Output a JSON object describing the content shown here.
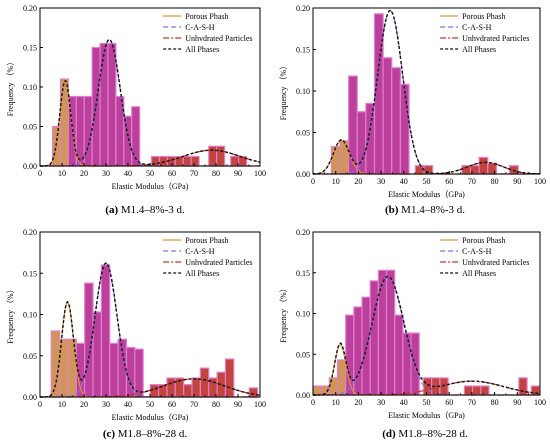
{
  "colors": {
    "porous": "#c8843a",
    "csh": "#b01f8a",
    "unhydrated": "#b8231a",
    "all": "#111111",
    "porous_line": "#e0953a",
    "csh_line": "#8c6ee0",
    "unhydrated_line": "#c0362a"
  },
  "chart_data": [
    {
      "type": "bar",
      "caption_prefix": "(a)",
      "caption_text": "M1.4–8%-3 d.",
      "xlabel": "Elastic Modulus（GPa)",
      "ylabel": "Frequency （%）",
      "xlim": [
        0,
        100
      ],
      "ylim": [
        0,
        0.2
      ],
      "xticks": [
        "0",
        "10",
        "20",
        "30",
        "40",
        "50",
        "60",
        "70",
        "80",
        "90",
        "100"
      ],
      "yticks": [
        "0.00",
        "0.05",
        "0.10",
        "0.15",
        "0.20"
      ],
      "legend": [
        "Porous Phash",
        "C-A-S-H",
        "Unhvdrated Particles",
        "All Phases"
      ],
      "legend_position": "top-right",
      "bin_width": 3.6,
      "bars": [
        {
          "x": 7.5,
          "y": 0.05,
          "phase": "porous"
        },
        {
          "x": 11.1,
          "y": 0.11,
          "phase": "porous"
        },
        {
          "x": 14.7,
          "y": 0.088,
          "phase": "csh"
        },
        {
          "x": 18.3,
          "y": 0.088,
          "phase": "csh"
        },
        {
          "x": 21.9,
          "y": 0.088,
          "phase": "csh"
        },
        {
          "x": 25.5,
          "y": 0.15,
          "phase": "csh"
        },
        {
          "x": 29.1,
          "y": 0.155,
          "phase": "csh"
        },
        {
          "x": 32.7,
          "y": 0.155,
          "phase": "csh"
        },
        {
          "x": 36.3,
          "y": 0.088,
          "phase": "csh"
        },
        {
          "x": 39.9,
          "y": 0.063,
          "phase": "csh"
        },
        {
          "x": 43.5,
          "y": 0.075,
          "phase": "csh"
        },
        {
          "x": 52.5,
          "y": 0.012,
          "phase": "unhydrated"
        },
        {
          "x": 56.1,
          "y": 0.012,
          "phase": "unhydrated"
        },
        {
          "x": 59.7,
          "y": 0.012,
          "phase": "unhydrated"
        },
        {
          "x": 63.3,
          "y": 0.012,
          "phase": "unhydrated"
        },
        {
          "x": 66.9,
          "y": 0.012,
          "phase": "unhydrated"
        },
        {
          "x": 70.5,
          "y": 0.012,
          "phase": "unhydrated"
        },
        {
          "x": 78.5,
          "y": 0.025,
          "phase": "unhydrated"
        },
        {
          "x": 82.1,
          "y": 0.025,
          "phase": "unhydrated"
        },
        {
          "x": 88.5,
          "y": 0.012,
          "phase": "unhydrated"
        },
        {
          "x": 92.1,
          "y": 0.012,
          "phase": "unhydrated"
        }
      ],
      "fits": {
        "porous": {
          "mu": 11.5,
          "sigma": 2.5,
          "amp": 0.108
        },
        "csh": {
          "mu": 31.5,
          "sigma": 5.0,
          "amp": 0.16
        },
        "unhydrated": {
          "mu": 78,
          "sigma": 13,
          "amp": 0.02
        }
      }
    },
    {
      "type": "bar",
      "caption_prefix": "(b)",
      "caption_text": "M1.4–8%-3 d.",
      "xlabel": "Elastic Modulus（GPa)",
      "ylabel": "Frequency （%）",
      "xlim": [
        0,
        100
      ],
      "ylim": [
        0,
        0.2
      ],
      "xticks": [
        "0",
        "10",
        "20",
        "30",
        "40",
        "50",
        "60",
        "70",
        "80",
        "90",
        "100"
      ],
      "yticks": [
        "0.00",
        "0.05",
        "0.10",
        "0.15",
        "0.20"
      ],
      "legend": [
        "Porous Phash",
        "C-A-S-H",
        "Unhvdrated Particles",
        "All Phases"
      ],
      "legend_position": "top-right",
      "bin_width": 3.8,
      "bars": [
        {
          "x": 10.0,
          "y": 0.033,
          "phase": "porous"
        },
        {
          "x": 13.8,
          "y": 0.04,
          "phase": "porous"
        },
        {
          "x": 17.6,
          "y": 0.118,
          "phase": "csh"
        },
        {
          "x": 21.4,
          "y": 0.075,
          "phase": "csh"
        },
        {
          "x": 25.2,
          "y": 0.085,
          "phase": "csh"
        },
        {
          "x": 29.0,
          "y": 0.193,
          "phase": "csh"
        },
        {
          "x": 32.8,
          "y": 0.14,
          "phase": "csh"
        },
        {
          "x": 36.6,
          "y": 0.128,
          "phase": "csh"
        },
        {
          "x": 40.4,
          "y": 0.108,
          "phase": "csh"
        },
        {
          "x": 47.0,
          "y": 0.01,
          "phase": "unhydrated"
        },
        {
          "x": 50.8,
          "y": 0.01,
          "phase": "unhydrated"
        },
        {
          "x": 67.5,
          "y": 0.01,
          "phase": "unhydrated"
        },
        {
          "x": 71.3,
          "y": 0.01,
          "phase": "unhydrated"
        },
        {
          "x": 75.1,
          "y": 0.02,
          "phase": "unhydrated"
        },
        {
          "x": 78.9,
          "y": 0.013,
          "phase": "unhydrated"
        },
        {
          "x": 88.5,
          "y": 0.01,
          "phase": "unhydrated"
        }
      ],
      "fits": {
        "porous": {
          "mu": 12.5,
          "sigma": 3.5,
          "amp": 0.041
        },
        "csh": {
          "mu": 34,
          "sigma": 5.5,
          "amp": 0.197
        },
        "unhydrated": {
          "mu": 76,
          "sigma": 8,
          "amp": 0.014
        }
      }
    },
    {
      "type": "bar",
      "caption_prefix": "(c)",
      "caption_text": "M1.8–8%-28 d.",
      "xlabel": "Elastic Modulus（GPa)",
      "ylabel": "Frequency （%）",
      "xlim": [
        0,
        100
      ],
      "ylim": [
        0,
        0.2
      ],
      "xticks": [
        "0",
        "10",
        "20",
        "30",
        "40",
        "50",
        "60",
        "70",
        "80",
        "90",
        "100"
      ],
      "yticks": [
        "0.00",
        "0.05",
        "0.10",
        "0.15",
        "0.20"
      ],
      "legend": [
        "Porous Phash",
        "C-A-S-H",
        "Unhvdrated Particles",
        "All Phases"
      ],
      "legend_position": "top-right",
      "bin_width": 3.8,
      "bars": [
        {
          "x": 7.0,
          "y": 0.08,
          "phase": "porous"
        },
        {
          "x": 10.8,
          "y": 0.07,
          "phase": "porous"
        },
        {
          "x": 14.6,
          "y": 0.07,
          "phase": "porous"
        },
        {
          "x": 18.4,
          "y": 0.065,
          "phase": "csh"
        },
        {
          "x": 22.2,
          "y": 0.138,
          "phase": "csh"
        },
        {
          "x": 26.0,
          "y": 0.103,
          "phase": "csh"
        },
        {
          "x": 29.8,
          "y": 0.16,
          "phase": "csh"
        },
        {
          "x": 33.6,
          "y": 0.065,
          "phase": "csh"
        },
        {
          "x": 37.4,
          "y": 0.07,
          "phase": "csh"
        },
        {
          "x": 41.2,
          "y": 0.06,
          "phase": "csh"
        },
        {
          "x": 45.0,
          "y": 0.058,
          "phase": "csh"
        },
        {
          "x": 52.0,
          "y": 0.015,
          "phase": "unhydrated"
        },
        {
          "x": 55.8,
          "y": 0.015,
          "phase": "unhydrated"
        },
        {
          "x": 59.6,
          "y": 0.023,
          "phase": "unhydrated"
        },
        {
          "x": 63.4,
          "y": 0.023,
          "phase": "unhydrated"
        },
        {
          "x": 67.2,
          "y": 0.015,
          "phase": "unhydrated"
        },
        {
          "x": 71.0,
          "y": 0.023,
          "phase": "unhydrated"
        },
        {
          "x": 74.8,
          "y": 0.035,
          "phase": "unhydrated"
        },
        {
          "x": 78.6,
          "y": 0.023,
          "phase": "unhydrated"
        },
        {
          "x": 82.4,
          "y": 0.03,
          "phase": "unhydrated"
        },
        {
          "x": 86.2,
          "y": 0.046,
          "phase": "unhydrated"
        },
        {
          "x": 97.0,
          "y": 0.011,
          "phase": "unhydrated"
        }
      ],
      "fits": {
        "porous": {
          "mu": 12.5,
          "sigma": 2.7,
          "amp": 0.115
        },
        "csh": {
          "mu": 30,
          "sigma": 5.0,
          "amp": 0.162
        },
        "unhydrated": {
          "mu": 70,
          "sigma": 14,
          "amp": 0.022
        }
      }
    },
    {
      "type": "bar",
      "caption_prefix": "(d)",
      "caption_text": "M1.8–8%-28 d.",
      "xlabel": "Elastic Modulus（GPa)",
      "ylabel": "Frequency （%）",
      "xlim": [
        0,
        100
      ],
      "ylim": [
        0,
        0.2
      ],
      "xticks": [
        "0",
        "10",
        "20",
        "30",
        "40",
        "50",
        "60",
        "70",
        "80",
        "90",
        "100"
      ],
      "yticks": [
        "0.00",
        "0.05",
        "0.10",
        "0.15",
        "0.20"
      ],
      "legend": [
        "Porous Phash",
        "C-A-S-H",
        "Unhvdrated Particles",
        "All Phases"
      ],
      "legend_position": "top-right",
      "bin_width": 3.6,
      "bars": [
        {
          "x": 1.8,
          "y": 0.011,
          "phase": "porous"
        },
        {
          "x": 5.4,
          "y": 0.011,
          "phase": "porous"
        },
        {
          "x": 9.0,
          "y": 0.021,
          "phase": "porous"
        },
        {
          "x": 12.6,
          "y": 0.043,
          "phase": "porous"
        },
        {
          "x": 16.2,
          "y": 0.098,
          "phase": "csh"
        },
        {
          "x": 19.8,
          "y": 0.108,
          "phase": "csh"
        },
        {
          "x": 23.4,
          "y": 0.12,
          "phase": "csh"
        },
        {
          "x": 27.0,
          "y": 0.14,
          "phase": "csh"
        },
        {
          "x": 30.6,
          "y": 0.153,
          "phase": "csh"
        },
        {
          "x": 34.2,
          "y": 0.153,
          "phase": "csh"
        },
        {
          "x": 37.8,
          "y": 0.098,
          "phase": "csh"
        },
        {
          "x": 41.4,
          "y": 0.076,
          "phase": "csh"
        },
        {
          "x": 45.0,
          "y": 0.076,
          "phase": "csh"
        },
        {
          "x": 50.5,
          "y": 0.021,
          "phase": "unhydrated"
        },
        {
          "x": 54.1,
          "y": 0.021,
          "phase": "unhydrated"
        },
        {
          "x": 57.7,
          "y": 0.021,
          "phase": "unhydrated"
        },
        {
          "x": 68.5,
          "y": 0.011,
          "phase": "unhydrated"
        },
        {
          "x": 72.1,
          "y": 0.011,
          "phase": "unhydrated"
        },
        {
          "x": 75.7,
          "y": 0.011,
          "phase": "unhydrated"
        },
        {
          "x": 92.5,
          "y": 0.021,
          "phase": "unhydrated"
        },
        {
          "x": 98.0,
          "y": 0.011,
          "phase": "unhydrated"
        }
      ],
      "fits": {
        "porous": {
          "mu": 12.0,
          "sigma": 2.5,
          "amp": 0.062
        },
        "csh": {
          "mu": 33,
          "sigma": 7.0,
          "amp": 0.145
        },
        "unhydrated": {
          "mu": 70,
          "sigma": 14,
          "amp": 0.017
        }
      }
    }
  ]
}
